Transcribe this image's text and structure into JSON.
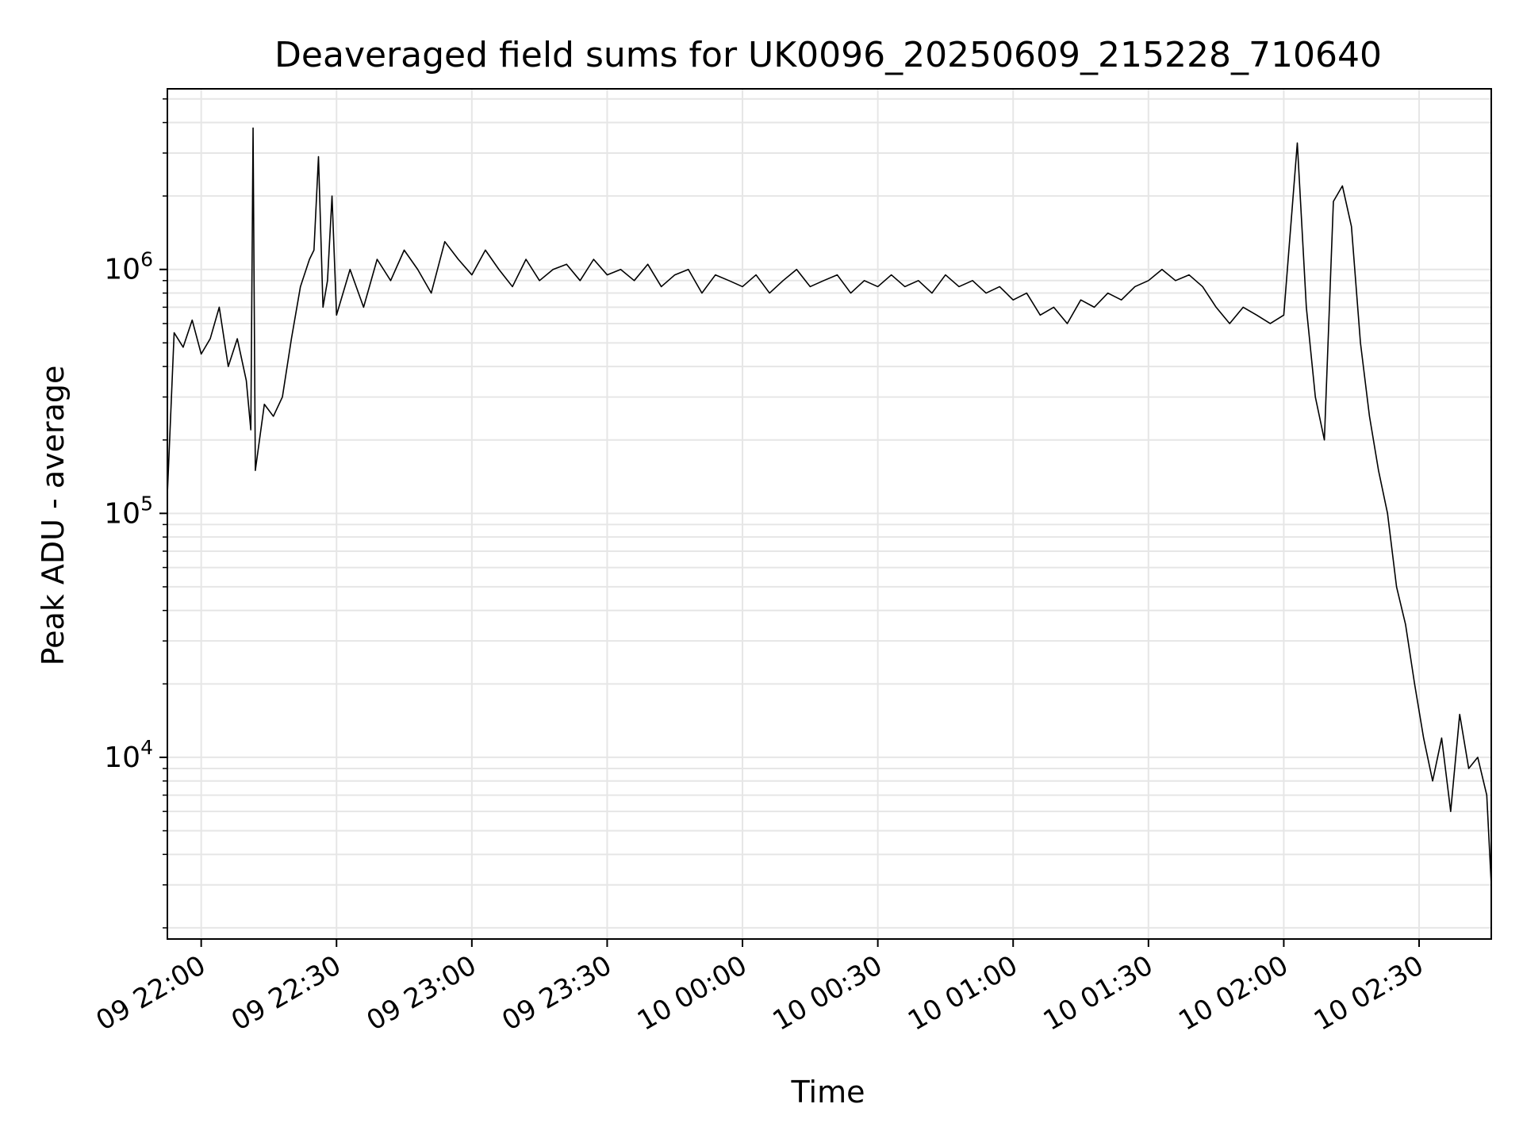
{
  "chart_data": {
    "type": "line",
    "title": "Deaveraged field sums for UK0096_20250609_215228_710640",
    "xlabel": "Time",
    "ylabel": "Peak ADU - average",
    "y_scale": "log",
    "ylim": [
      1800,
      5500000
    ],
    "xlim": [
      "2025-06-09 21:52:30",
      "2025-06-10 02:46:00"
    ],
    "grid": true,
    "legend": "none",
    "line_color": "#000000",
    "x_ticks": [
      {
        "value": "2025-06-09 22:00",
        "label": "09 22:00"
      },
      {
        "value": "2025-06-09 22:30",
        "label": "09 22:30"
      },
      {
        "value": "2025-06-09 23:00",
        "label": "09 23:00"
      },
      {
        "value": "2025-06-09 23:30",
        "label": "09 23:30"
      },
      {
        "value": "2025-06-10 00:00",
        "label": "10 00:00"
      },
      {
        "value": "2025-06-10 00:30",
        "label": "10 00:30"
      },
      {
        "value": "2025-06-10 01:00",
        "label": "10 01:00"
      },
      {
        "value": "2025-06-10 01:30",
        "label": "10 01:30"
      },
      {
        "value": "2025-06-10 02:00",
        "label": "10 02:00"
      },
      {
        "value": "2025-06-10 02:30",
        "label": "10 02:30"
      }
    ],
    "y_ticks": [
      {
        "value": 10000,
        "base": "10",
        "exp": "4"
      },
      {
        "value": 100000,
        "base": "10",
        "exp": "5"
      },
      {
        "value": 1000000,
        "base": "10",
        "exp": "6"
      }
    ],
    "series": [
      {
        "x": [
          "2025-06-09 21:52:30",
          "2025-06-09 21:54",
          "2025-06-09 21:56",
          "2025-06-09 21:58",
          "2025-06-09 22:00",
          "2025-06-09 22:02",
          "2025-06-09 22:04",
          "2025-06-09 22:06",
          "2025-06-09 22:08",
          "2025-06-09 22:10",
          "2025-06-09 22:11",
          "2025-06-09 22:11:30",
          "2025-06-09 22:12",
          "2025-06-09 22:14",
          "2025-06-09 22:16",
          "2025-06-09 22:18",
          "2025-06-09 22:20",
          "2025-06-09 22:22",
          "2025-06-09 22:24",
          "2025-06-09 22:25",
          "2025-06-09 22:26",
          "2025-06-09 22:27",
          "2025-06-09 22:28",
          "2025-06-09 22:29",
          "2025-06-09 22:30",
          "2025-06-09 22:33",
          "2025-06-09 22:36",
          "2025-06-09 22:39",
          "2025-06-09 22:42",
          "2025-06-09 22:45",
          "2025-06-09 22:48",
          "2025-06-09 22:51",
          "2025-06-09 22:54",
          "2025-06-09 22:57",
          "2025-06-09 23:00",
          "2025-06-09 23:03",
          "2025-06-09 23:06",
          "2025-06-09 23:09",
          "2025-06-09 23:12",
          "2025-06-09 23:15",
          "2025-06-09 23:18",
          "2025-06-09 23:21",
          "2025-06-09 23:24",
          "2025-06-09 23:27",
          "2025-06-09 23:30",
          "2025-06-09 23:33",
          "2025-06-09 23:36",
          "2025-06-09 23:39",
          "2025-06-09 23:42",
          "2025-06-09 23:45",
          "2025-06-09 23:48",
          "2025-06-09 23:51",
          "2025-06-09 23:54",
          "2025-06-09 23:57",
          "2025-06-10 00:00",
          "2025-06-10 00:03",
          "2025-06-10 00:06",
          "2025-06-10 00:09",
          "2025-06-10 00:12",
          "2025-06-10 00:15",
          "2025-06-10 00:18",
          "2025-06-10 00:21",
          "2025-06-10 00:24",
          "2025-06-10 00:27",
          "2025-06-10 00:30",
          "2025-06-10 00:33",
          "2025-06-10 00:36",
          "2025-06-10 00:39",
          "2025-06-10 00:42",
          "2025-06-10 00:45",
          "2025-06-10 00:48",
          "2025-06-10 00:51",
          "2025-06-10 00:54",
          "2025-06-10 00:57",
          "2025-06-10 01:00",
          "2025-06-10 01:03",
          "2025-06-10 01:06",
          "2025-06-10 01:09",
          "2025-06-10 01:12",
          "2025-06-10 01:15",
          "2025-06-10 01:18",
          "2025-06-10 01:21",
          "2025-06-10 01:24",
          "2025-06-10 01:27",
          "2025-06-10 01:30",
          "2025-06-10 01:33",
          "2025-06-10 01:36",
          "2025-06-10 01:39",
          "2025-06-10 01:42",
          "2025-06-10 01:45",
          "2025-06-10 01:48",
          "2025-06-10 01:51",
          "2025-06-10 01:54",
          "2025-06-10 01:57",
          "2025-06-10 02:00",
          "2025-06-10 02:03",
          "2025-06-10 02:05",
          "2025-06-10 02:07",
          "2025-06-10 02:09",
          "2025-06-10 02:11",
          "2025-06-10 02:13",
          "2025-06-10 02:15",
          "2025-06-10 02:17",
          "2025-06-10 02:19",
          "2025-06-10 02:21",
          "2025-06-10 02:23",
          "2025-06-10 02:25",
          "2025-06-10 02:27",
          "2025-06-10 02:29",
          "2025-06-10 02:31",
          "2025-06-10 02:33",
          "2025-06-10 02:35",
          "2025-06-10 02:37",
          "2025-06-10 02:39",
          "2025-06-10 02:41",
          "2025-06-10 02:43",
          "2025-06-10 02:45",
          "2025-06-10 02:46"
        ],
        "values": [
          120000,
          550000,
          480000,
          620000,
          450000,
          520000,
          700000,
          400000,
          520000,
          350000,
          220000,
          3800000,
          150000,
          280000,
          250000,
          300000,
          520000,
          850000,
          1100000,
          1200000,
          2900000,
          700000,
          900000,
          2000000,
          650000,
          1000000,
          700000,
          1100000,
          900000,
          1200000,
          1000000,
          800000,
          1300000,
          1100000,
          950000,
          1200000,
          1000000,
          850000,
          1100000,
          900000,
          1000000,
          1050000,
          900000,
          1100000,
          950000,
          1000000,
          900000,
          1050000,
          850000,
          950000,
          1000000,
          800000,
          950000,
          900000,
          850000,
          950000,
          800000,
          900000,
          1000000,
          850000,
          900000,
          950000,
          800000,
          900000,
          850000,
          950000,
          850000,
          900000,
          800000,
          950000,
          850000,
          900000,
          800000,
          850000,
          750000,
          800000,
          650000,
          700000,
          600000,
          750000,
          700000,
          800000,
          750000,
          850000,
          900000,
          1000000,
          900000,
          950000,
          850000,
          700000,
          600000,
          700000,
          650000,
          600000,
          650000,
          3300000,
          700000,
          300000,
          200000,
          1900000,
          2200000,
          1500000,
          500000,
          250000,
          150000,
          100000,
          50000,
          35000,
          20000,
          12000,
          8000,
          12000,
          6000,
          15000,
          9000,
          10000,
          7000,
          3000
        ]
      }
    ]
  }
}
